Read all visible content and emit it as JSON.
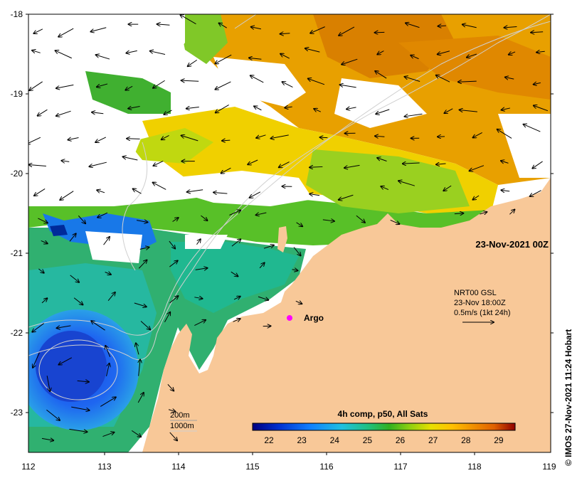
{
  "map": {
    "title": "23-Nov-2021 00Z",
    "lon_ticks": [
      "112",
      "113",
      "114",
      "115",
      "116",
      "117",
      "118",
      "119"
    ],
    "lat_ticks": [
      "-18",
      "-19",
      "-20",
      "-21",
      "-22",
      "-23"
    ],
    "lon_range": [
      112,
      119
    ],
    "lat_range": [
      -23.5,
      -18
    ],
    "argo_label": "Argo",
    "argo_position": {
      "lon": 115.5,
      "lat": -21.8
    },
    "current_legend": {
      "line1": "NRT00 GSL",
      "line2": "23-Nov 18:00Z",
      "line3": "0.5m/s (1kt 24h)"
    },
    "isobaths": {
      "label_200": "200m",
      "label_1000": "1000m"
    },
    "colorbar": {
      "title": "4h comp, p50, All Sats",
      "ticks": [
        "22",
        "23",
        "24",
        "25",
        "26",
        "27",
        "28",
        "29"
      ],
      "range": [
        21.5,
        29.5
      ],
      "colors": [
        "#000080",
        "#0030d0",
        "#1080ff",
        "#20c0e0",
        "#20c080",
        "#30b020",
        "#90d010",
        "#e8e000",
        "#ffc000",
        "#f09000",
        "#e06000",
        "#c02000",
        "#900000"
      ]
    },
    "credit": "© IMOS 27-Nov-2021 11:24 Hobart",
    "land_color": "#f8c898"
  }
}
